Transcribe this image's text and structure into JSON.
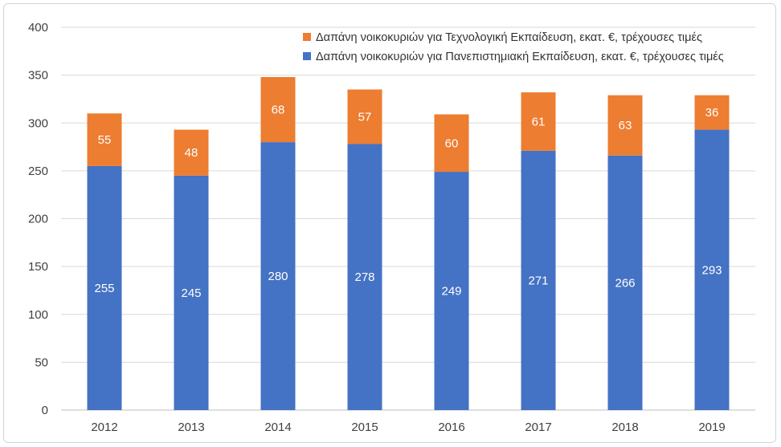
{
  "chart_data": {
    "type": "bar",
    "stacked": true,
    "categories": [
      "2012",
      "2013",
      "2014",
      "2015",
      "2016",
      "2017",
      "2018",
      "2019"
    ],
    "series": [
      {
        "name": "Δαπάνη νοικοκυριών για Πανεπιστημιακή Εκπαίδευση, εκατ. €, τρέχουσες τιμές",
        "color": "#4472C4",
        "values": [
          255,
          245,
          280,
          278,
          249,
          271,
          266,
          293
        ]
      },
      {
        "name": "Δαπάνη νοικοκυριών για Τεχνολογική Εκπαίδευση, εκατ. €, τρέχουσες τιμές",
        "color": "#ED7D31",
        "values": [
          55,
          48,
          68,
          57,
          60,
          61,
          63,
          36
        ]
      }
    ],
    "ylim": [
      0,
      400
    ],
    "yticks": [
      0,
      50,
      100,
      150,
      200,
      250,
      300,
      350,
      400
    ],
    "grid": true,
    "legend_position": "top-right",
    "legend_order": [
      1,
      0
    ],
    "data_labels": true
  }
}
